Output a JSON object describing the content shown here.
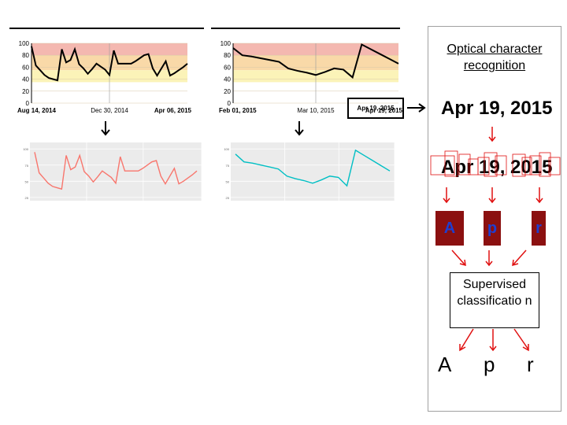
{
  "chart_data": [
    {
      "type": "line",
      "title": "",
      "x_tick_labels": [
        "Aug 14, 2014",
        "Dec 30, 2014",
        "Apr 06, 2015"
      ],
      "y_ticks": [
        0,
        20,
        40,
        60,
        80,
        100
      ],
      "ylim": [
        0,
        100
      ],
      "series": [
        {
          "values": [
            95,
            63,
            55,
            47,
            42,
            40,
            38,
            90,
            68,
            72,
            90,
            65,
            58,
            49,
            57,
            66,
            61,
            56,
            47,
            88,
            66,
            66,
            66,
            66,
            70,
            75,
            80,
            82,
            58,
            46,
            58,
            70,
            46,
            50,
            55,
            60,
            66
          ]
        }
      ],
      "colors": {
        "line": "#000000",
        "band_top": "#f4b8b0",
        "band_mid": "#f9d9a8",
        "band_low": "#fbf3b8"
      },
      "background_bands": true,
      "grid": true
    },
    {
      "type": "line",
      "title": "",
      "x_tick_labels": [
        "Feb 01, 2015",
        "Mar 10, 2015",
        "Apr 19, 2015"
      ],
      "y_ticks": [
        0,
        20,
        40,
        60,
        80,
        100
      ],
      "ylim": [
        0,
        100
      ],
      "series": [
        {
          "values": [
            92,
            80,
            78,
            75,
            72,
            69,
            58,
            54,
            51,
            47,
            52,
            58,
            56,
            43,
            98,
            90,
            82,
            74,
            66
          ]
        }
      ],
      "colors": {
        "line": "#000000",
        "band_top": "#f4b8b0",
        "band_mid": "#f9d9a8",
        "band_low": "#fbf3b8"
      },
      "background_bands": true,
      "grid": true
    },
    {
      "type": "line",
      "title": "",
      "y_ticks": [
        25,
        50,
        75,
        100
      ],
      "ylim": [
        0,
        100
      ],
      "series": [
        {
          "values": [
            95,
            63,
            55,
            47,
            42,
            40,
            38,
            90,
            68,
            72,
            90,
            65,
            58,
            49,
            57,
            66,
            61,
            56,
            47,
            88,
            66,
            66,
            66,
            66,
            70,
            75,
            80,
            82,
            58,
            46,
            58,
            70,
            46,
            50,
            55,
            60,
            66
          ]
        }
      ],
      "colors": {
        "line": "#f8766d",
        "panel": "#ebebeb"
      },
      "grid": true
    },
    {
      "type": "line",
      "title": "",
      "y_ticks": [
        25,
        50,
        75,
        100
      ],
      "ylim": [
        0,
        100
      ],
      "series": [
        {
          "values": [
            92,
            80,
            78,
            75,
            72,
            69,
            58,
            54,
            51,
            47,
            52,
            58,
            56,
            43,
            98,
            90,
            82,
            74,
            66
          ]
        }
      ],
      "colors": {
        "line": "#00bfc4",
        "panel": "#ebebeb"
      },
      "grid": true
    }
  ],
  "date_box_label": "Apr 19, 2015",
  "ocr": {
    "title": "Optical character recognition",
    "date_text": "Apr 19, 2015",
    "segmented_text": "Apr 19, 2015",
    "chars": [
      "A",
      "p",
      "r"
    ],
    "classifier_label": "Supervised classificatio n",
    "outputs": [
      "A",
      "p",
      "r"
    ]
  },
  "colors": {
    "arrow_red": "#e01010",
    "segment_box": "#e01010",
    "tile_bg": "#8b1010",
    "tile_fg": "#1f3fd0"
  }
}
